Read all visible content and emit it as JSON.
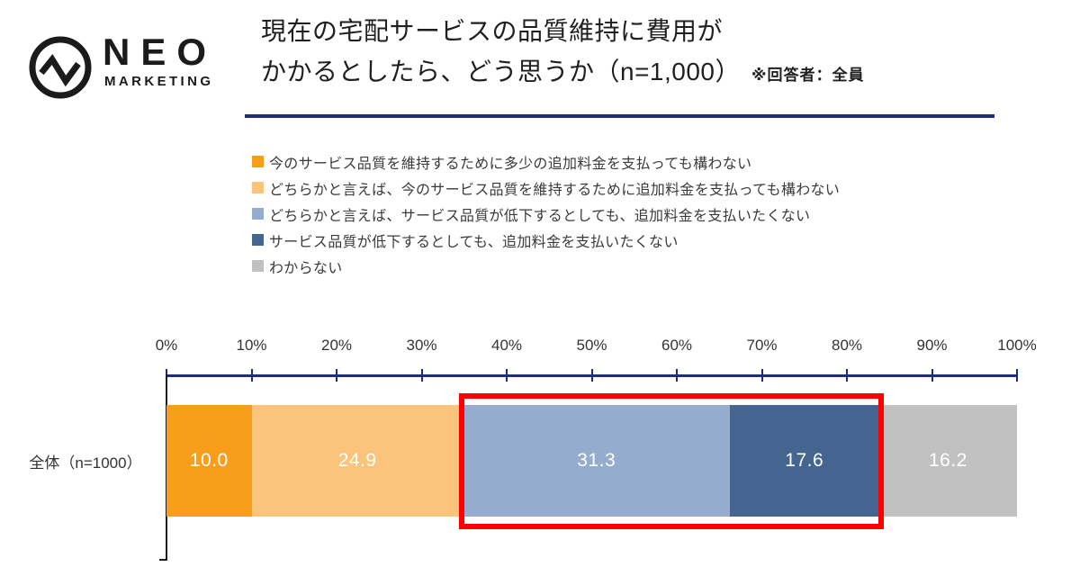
{
  "header": {
    "logo": {
      "brand": "NEO",
      "sub": "MARKETING",
      "icon": "pulse-circle-icon"
    },
    "title_line1": "現在の宅配サービスの品質維持に費用が",
    "title_line2": "かかるとしたら、どう思うか（n=1,000）",
    "title_note": "※回答者：全員"
  },
  "chart_data": {
    "type": "bar",
    "orientation": "horizontal-stacked",
    "title": "現在の宅配サービスの品質維持に費用がかかるとしたら、どう思うか（n=1,000） ※回答者：全員",
    "categories": [
      "全体（n=1000）"
    ],
    "series": [
      {
        "name": "今のサービス品質を維持するために多少の追加料金を支払っても構わない",
        "color": "#F89E1B",
        "values": [
          10.0
        ]
      },
      {
        "name": "どちらかと言えば、今のサービス品質を維持するために追加料金を支払っても構わない",
        "color": "#FAC47B",
        "values": [
          24.9
        ]
      },
      {
        "name": "どちらかと言えば、サービス品質が低下するとしても、追加料金を支払いたくない",
        "color": "#95ACCE",
        "values": [
          31.3
        ]
      },
      {
        "name": "サービス品質が低下するとしても、追加料金を支払いたくない",
        "color": "#44658F",
        "values": [
          17.6
        ]
      },
      {
        "name": "わからない",
        "color": "#C1C1C1",
        "values": [
          16.2
        ]
      }
    ],
    "xlim": [
      0,
      100
    ],
    "x_ticks": [
      "0%",
      "10%",
      "20%",
      "30%",
      "40%",
      "50%",
      "60%",
      "70%",
      "80%",
      "90%",
      "100%"
    ],
    "value_format": "one-decimal",
    "legend_position": "top-left",
    "grid": false,
    "highlight": {
      "segment_indices": [
        2,
        3
      ],
      "color": "#FF0000"
    }
  },
  "colors": {
    "axis": "#1F2C7D",
    "title_rule": "#1F2C7D",
    "highlight": "#FF0000",
    "logo": "#1B1B1B"
  }
}
